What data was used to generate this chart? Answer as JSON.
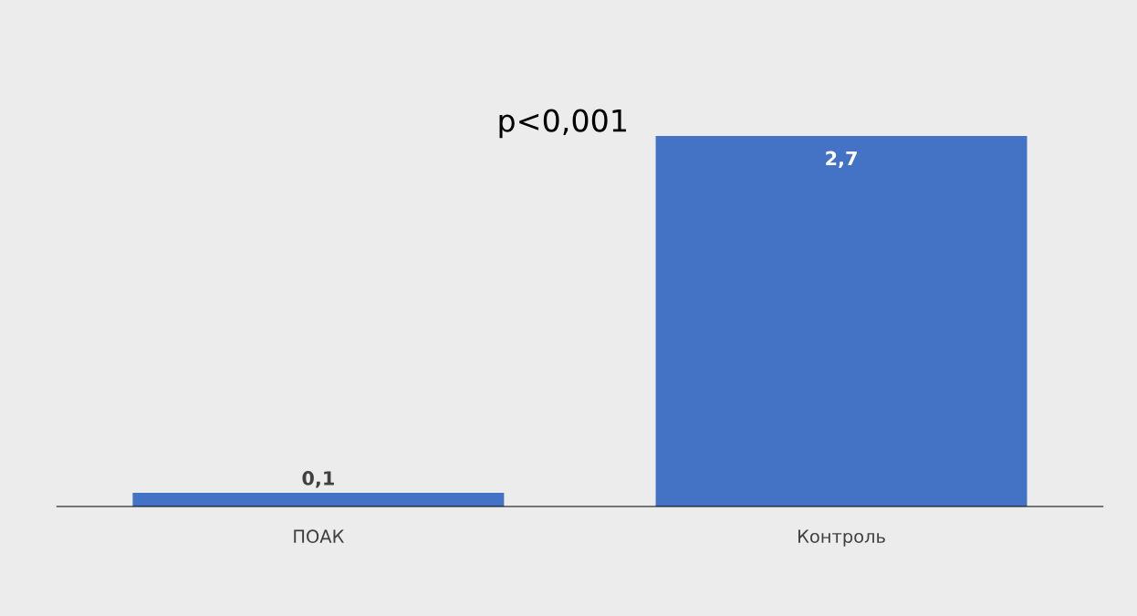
{
  "chart_data": {
    "type": "bar",
    "categories": [
      "ПОАК",
      "Контроль"
    ],
    "values": [
      0.1,
      2.7
    ],
    "color": "#4472c4",
    "value_labels": [
      "0,1",
      "2,7"
    ],
    "annotations": [
      "p<0,001"
    ],
    "grid": false,
    "legend": false
  }
}
